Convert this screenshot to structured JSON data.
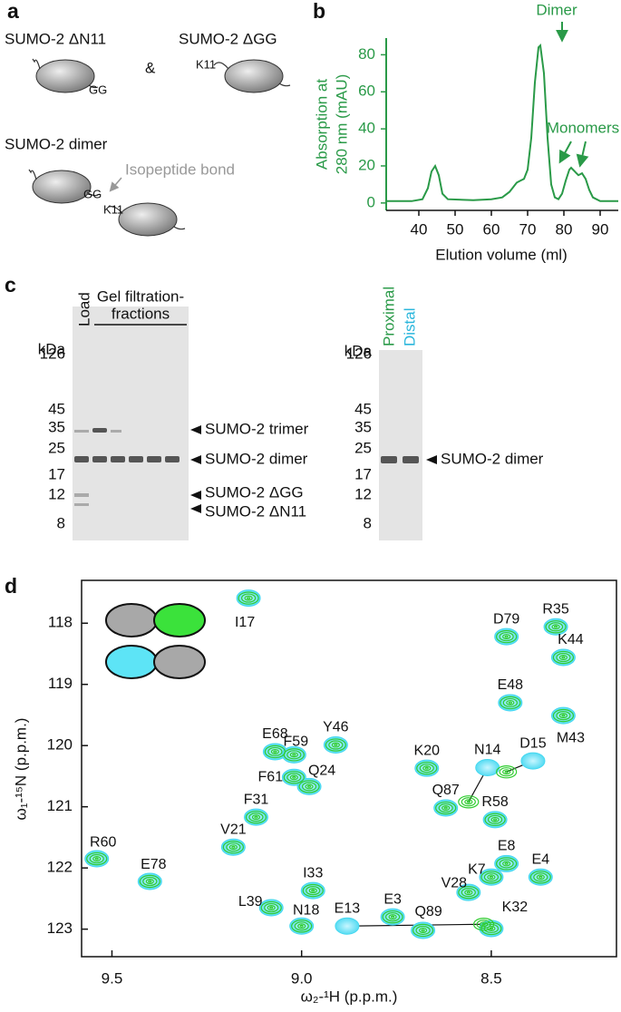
{
  "panel_labels": [
    "a",
    "b",
    "c",
    "d"
  ],
  "panel_a": {
    "constructs": [
      "SUMO-2 ΔN11",
      "SUMO-2 ΔGG",
      "SUMO-2 dimer"
    ],
    "ampersand": "&",
    "annotation": "Isopeptide bond",
    "gg": "GG",
    "k11": "K11"
  },
  "panel_c": {
    "lane_labels": [
      "Load",
      "Gel filtration-",
      "fractions"
    ],
    "unit": "kDa",
    "markers": [
      126,
      45,
      35,
      25,
      17,
      12,
      8
    ],
    "band_labels": [
      "SUMO-2 trimer",
      "SUMO-2 dimer",
      "SUMO-2 ΔGG",
      "SUMO-2 ΔN11"
    ],
    "gel2_lanes": [
      "Proximal",
      "Distal"
    ],
    "gel2_band": "SUMO-2 dimer"
  },
  "chart_data": [
    {
      "type": "line",
      "x_label": "Elution volume (ml)",
      "y_label": [
        "Absorption at",
        "280 nm (mAU)"
      ],
      "annotations": [
        "Dimer",
        "Monomers"
      ],
      "x": [
        31,
        38,
        41,
        42.5,
        43.5,
        44.5,
        45.5,
        46.5,
        48,
        55,
        60,
        63,
        65,
        67,
        68,
        69,
        70,
        71,
        72,
        73,
        73.5,
        74.5,
        75.5,
        76.5,
        77.5,
        78.5,
        79.5,
        80.5,
        81.5,
        82,
        83,
        84,
        85,
        86,
        87,
        88,
        90,
        95
      ],
      "series": [
        {
          "color": "#2a9a48",
          "values": [
            1,
            1,
            2,
            8,
            17,
            20,
            15,
            5,
            2,
            1.5,
            2,
            3,
            6,
            11,
            12,
            13,
            18,
            35,
            65,
            84,
            85,
            70,
            35,
            10,
            3,
            2,
            5,
            12,
            18,
            19,
            17,
            15,
            16,
            13,
            7,
            3,
            1,
            1
          ]
        }
      ],
      "xlim": [
        31,
        95
      ],
      "ylim": [
        -4,
        89
      ],
      "xticks": [
        40,
        50,
        60,
        70,
        80,
        90
      ],
      "yticks": [
        0,
        20,
        40,
        60,
        80
      ]
    },
    {
      "type": "scatter",
      "x_label": "ω₂-¹H (p.p.m.)",
      "y_label": "ω₁-¹⁵N (p.p.m.)",
      "xlim": [
        9.58,
        8.17
      ],
      "ylim": [
        117.3,
        123.45
      ],
      "xticks": [
        9.5,
        {
          "value": 9,
          "label": "9.0"
        },
        8.5
      ],
      "yticks": [
        118,
        119,
        120,
        121,
        122,
        123
      ],
      "point_labels": [
        "I17",
        "D79",
        "R35",
        "K44",
        "E48",
        "M43",
        "N14",
        "D15",
        "Y46",
        "K20",
        "E68",
        "F59",
        "F61",
        "Q24",
        "F31",
        "V21",
        "R60",
        "E78",
        "Q87",
        "R58",
        "E8",
        "E4",
        "K7",
        "V28",
        "I33",
        "L39",
        "N18",
        "E3",
        "Q89",
        "E13",
        "K32"
      ],
      "series": [
        {
          "color": "#45d8f0",
          "x": [
            9.14,
            8.46,
            8.33,
            8.31,
            8.45,
            8.31,
            8.51,
            8.39,
            8.91,
            8.67,
            9.07,
            9.02,
            9.02,
            8.98,
            9.12,
            9.18,
            9.54,
            9.4,
            8.62,
            8.49,
            8.46,
            8.37,
            8.5,
            8.56,
            8.97,
            9.08,
            9.0,
            8.76,
            8.68,
            8.88,
            8.5
          ],
          "y": [
            117.59,
            118.22,
            118.06,
            118.56,
            119.3,
            119.51,
            120.36,
            120.25,
            119.99,
            120.37,
            120.1,
            120.15,
            120.52,
            120.67,
            121.17,
            121.66,
            121.85,
            122.22,
            121.02,
            121.21,
            121.93,
            122.15,
            122.15,
            122.4,
            122.37,
            122.65,
            122.95,
            122.8,
            123.02,
            122.95,
            122.99
          ]
        },
        {
          "color": "#2fcc2f",
          "x": [
            9.14,
            8.46,
            8.33,
            8.31,
            8.45,
            8.31,
            8.56,
            8.46,
            8.91,
            8.67,
            9.07,
            9.02,
            9.02,
            8.98,
            9.12,
            9.18,
            9.54,
            9.4,
            8.62,
            8.49,
            8.46,
            8.37,
            8.5,
            8.56,
            8.97,
            9.08,
            9.0,
            8.76,
            8.68,
            8.52,
            8.5
          ],
          "y": [
            117.59,
            118.22,
            118.06,
            118.56,
            119.3,
            119.51,
            120.92,
            120.43,
            119.99,
            120.37,
            120.1,
            120.15,
            120.52,
            120.67,
            121.17,
            121.66,
            121.85,
            122.22,
            121.02,
            121.21,
            121.93,
            122.15,
            122.15,
            122.4,
            122.37,
            122.65,
            122.95,
            122.8,
            123.02,
            122.92,
            122.99
          ]
        }
      ]
    }
  ]
}
